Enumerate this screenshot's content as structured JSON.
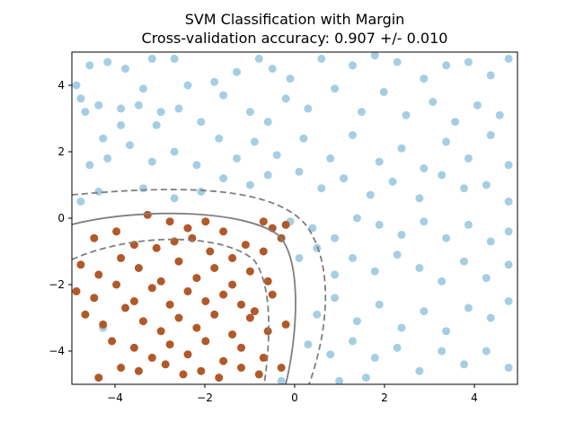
{
  "chart_data": {
    "type": "scatter",
    "title": "SVM Classification with Margin",
    "subtitle": "Cross-validation accuracy: 0.907 +/- 0.010",
    "xlim": [
      -5,
      5
    ],
    "ylim": [
      -5,
      5
    ],
    "x_ticks": [
      "−4",
      "−2",
      "0",
      "2",
      "4"
    ],
    "y_ticks": [
      "4",
      "2",
      "0",
      "−2",
      "−4"
    ],
    "colors": {
      "class_a": "#a6cee3",
      "class_b": "#b15928",
      "boundary": "#7f7f7f"
    },
    "series": [
      {
        "class": "outside",
        "color": "#a6cee3",
        "points": [
          [
            -4.6,
            4.6
          ],
          [
            -4.2,
            4.7
          ],
          [
            -3.8,
            4.5
          ],
          [
            -3.2,
            4.8
          ],
          [
            -2.7,
            4.8
          ],
          [
            -4.8,
            3.6
          ],
          [
            -4.4,
            3.4
          ],
          [
            -3.9,
            3.3
          ],
          [
            -3.4,
            3.9
          ],
          [
            -3.0,
            3.2
          ],
          [
            -2.4,
            4.0
          ],
          [
            -1.8,
            4.1
          ],
          [
            -1.3,
            4.4
          ],
          [
            -0.8,
            4.8
          ],
          [
            -0.5,
            4.5
          ],
          [
            -0.1,
            4.2
          ],
          [
            0.6,
            4.8
          ],
          [
            1.3,
            4.6
          ],
          [
            1.8,
            4.9
          ],
          [
            2.3,
            4.7
          ],
          [
            2.9,
            4.2
          ],
          [
            3.4,
            4.6
          ],
          [
            3.9,
            4.7
          ],
          [
            4.4,
            4.3
          ],
          [
            4.8,
            4.8
          ],
          [
            -4.9,
            4.0
          ],
          [
            -4.7,
            3.2
          ],
          [
            -4.3,
            2.4
          ],
          [
            -3.9,
            2.8
          ],
          [
            -3.5,
            3.4
          ],
          [
            -3.1,
            2.8
          ],
          [
            -2.6,
            3.3
          ],
          [
            -2.1,
            2.9
          ],
          [
            -1.6,
            3.7
          ],
          [
            -1.0,
            3.2
          ],
          [
            -0.6,
            2.9
          ],
          [
            -0.2,
            3.6
          ],
          [
            0.3,
            3.3
          ],
          [
            0.9,
            3.9
          ],
          [
            1.5,
            3.2
          ],
          [
            2.0,
            3.8
          ],
          [
            2.5,
            3.1
          ],
          [
            3.1,
            3.5
          ],
          [
            3.6,
            2.9
          ],
          [
            4.1,
            3.4
          ],
          [
            4.6,
            3.1
          ],
          [
            -4.6,
            1.6
          ],
          [
            -4.2,
            1.8
          ],
          [
            -3.7,
            2.2
          ],
          [
            -3.2,
            1.7
          ],
          [
            -2.7,
            2.0
          ],
          [
            -2.2,
            1.6
          ],
          [
            -1.7,
            2.4
          ],
          [
            -1.3,
            1.8
          ],
          [
            -0.9,
            2.3
          ],
          [
            -0.4,
            1.9
          ],
          [
            0.2,
            2.4
          ],
          [
            0.8,
            1.8
          ],
          [
            1.3,
            2.5
          ],
          [
            1.9,
            1.7
          ],
          [
            2.4,
            2.1
          ],
          [
            2.9,
            1.5
          ],
          [
            3.4,
            2.3
          ],
          [
            3.9,
            1.8
          ],
          [
            4.4,
            2.5
          ],
          [
            4.8,
            1.6
          ],
          [
            -4.8,
            0.5
          ],
          [
            -4.4,
            0.8
          ],
          [
            -3.4,
            0.9
          ],
          [
            -2.7,
            0.6
          ],
          [
            -2.1,
            0.8
          ],
          [
            -1.6,
            1.2
          ],
          [
            -1.0,
            1.0
          ],
          [
            -0.6,
            1.3
          ],
          [
            0.1,
            1.4
          ],
          [
            0.6,
            0.9
          ],
          [
            1.1,
            1.2
          ],
          [
            1.7,
            0.7
          ],
          [
            2.2,
            1.1
          ],
          [
            2.8,
            0.6
          ],
          [
            3.3,
            1.3
          ],
          [
            3.8,
            0.9
          ],
          [
            4.3,
            1.0
          ],
          [
            4.8,
            0.5
          ],
          [
            -0.1,
            -0.1
          ],
          [
            0.4,
            -0.3
          ],
          [
            0.9,
            -0.6
          ],
          [
            1.4,
            0.0
          ],
          [
            1.9,
            -0.2
          ],
          [
            2.4,
            -0.5
          ],
          [
            2.9,
            -0.1
          ],
          [
            3.4,
            -0.6
          ],
          [
            3.9,
            -0.2
          ],
          [
            4.4,
            -0.7
          ],
          [
            4.8,
            -0.4
          ],
          [
            0.1,
            -1.2
          ],
          [
            0.5,
            -0.9
          ],
          [
            0.9,
            -1.7
          ],
          [
            1.3,
            -1.2
          ],
          [
            1.8,
            -1.6
          ],
          [
            2.3,
            -1.1
          ],
          [
            2.8,
            -1.5
          ],
          [
            3.3,
            -1.9
          ],
          [
            3.8,
            -1.3
          ],
          [
            4.3,
            -1.8
          ],
          [
            4.8,
            -1.4
          ],
          [
            0.5,
            -2.9
          ],
          [
            0.9,
            -2.4
          ],
          [
            1.4,
            -3.1
          ],
          [
            1.9,
            -2.6
          ],
          [
            2.4,
            -3.3
          ],
          [
            2.9,
            -2.8
          ],
          [
            3.4,
            -3.4
          ],
          [
            3.9,
            -2.7
          ],
          [
            4.4,
            -3.0
          ],
          [
            4.8,
            -2.5
          ],
          [
            -4.3,
            -3.3
          ],
          [
            0.3,
            -3.8
          ],
          [
            0.8,
            -4.1
          ],
          [
            1.3,
            -3.7
          ],
          [
            1.8,
            -4.2
          ],
          [
            2.3,
            -3.9
          ],
          [
            2.8,
            -4.6
          ],
          [
            3.3,
            -4.0
          ],
          [
            3.8,
            -4.4
          ],
          [
            4.3,
            -4.0
          ],
          [
            4.8,
            -4.5
          ],
          [
            1.6,
            -4.8
          ],
          [
            1.0,
            -4.9
          ],
          [
            -0.3,
            -4.9
          ]
        ]
      },
      {
        "class": "inside",
        "color": "#b15928",
        "points": [
          [
            -3.3,
            0.1
          ],
          [
            -2.8,
            -0.1
          ],
          [
            -2.4,
            -0.3
          ],
          [
            -2.0,
            -0.1
          ],
          [
            -1.6,
            -0.4
          ],
          [
            -0.7,
            -0.1
          ],
          [
            -0.5,
            -0.3
          ],
          [
            -0.2,
            -0.2
          ],
          [
            -4.5,
            -0.6
          ],
          [
            -4.0,
            -0.4
          ],
          [
            -3.6,
            -0.8
          ],
          [
            -3.1,
            -0.9
          ],
          [
            -2.7,
            -0.7
          ],
          [
            -2.3,
            -0.6
          ],
          [
            -1.9,
            -1.0
          ],
          [
            -1.4,
            -1.2
          ],
          [
            -1.1,
            -0.8
          ],
          [
            -0.7,
            -1.0
          ],
          [
            -0.3,
            -0.6
          ],
          [
            -4.8,
            -1.4
          ],
          [
            -4.4,
            -1.7
          ],
          [
            -3.9,
            -1.2
          ],
          [
            -3.5,
            -1.5
          ],
          [
            -3.0,
            -1.9
          ],
          [
            -2.6,
            -1.3
          ],
          [
            -2.2,
            -1.8
          ],
          [
            -1.8,
            -1.5
          ],
          [
            -1.4,
            -2.0
          ],
          [
            -1.0,
            -1.6
          ],
          [
            -0.6,
            -1.9
          ],
          [
            -4.9,
            -2.2
          ],
          [
            -4.5,
            -2.4
          ],
          [
            -4.0,
            -2.0
          ],
          [
            -3.6,
            -2.5
          ],
          [
            -3.2,
            -2.1
          ],
          [
            -2.8,
            -2.6
          ],
          [
            -2.4,
            -2.2
          ],
          [
            -2.0,
            -2.5
          ],
          [
            -1.6,
            -2.3
          ],
          [
            -1.2,
            -2.6
          ],
          [
            -0.9,
            -2.8
          ],
          [
            -0.5,
            -2.3
          ],
          [
            -4.7,
            -2.9
          ],
          [
            -4.3,
            -3.2
          ],
          [
            -3.8,
            -2.7
          ],
          [
            -3.4,
            -3.1
          ],
          [
            -3.0,
            -3.4
          ],
          [
            -2.6,
            -3.0
          ],
          [
            -2.2,
            -3.3
          ],
          [
            -1.8,
            -2.9
          ],
          [
            -1.4,
            -3.5
          ],
          [
            -1.0,
            -3.0
          ],
          [
            -0.6,
            -3.4
          ],
          [
            -0.2,
            -3.2
          ],
          [
            -4.1,
            -3.7
          ],
          [
            -3.6,
            -3.9
          ],
          [
            -3.2,
            -4.2
          ],
          [
            -2.8,
            -3.8
          ],
          [
            -2.4,
            -4.1
          ],
          [
            -2.0,
            -3.7
          ],
          [
            -1.6,
            -4.3
          ],
          [
            -1.2,
            -3.9
          ],
          [
            -0.7,
            -4.2
          ],
          [
            -0.3,
            -4.5
          ],
          [
            -4.4,
            -4.8
          ],
          [
            -3.9,
            -4.5
          ],
          [
            -3.5,
            -4.6
          ],
          [
            -2.9,
            -4.4
          ],
          [
            -2.5,
            -4.7
          ],
          [
            -2.1,
            -4.6
          ],
          [
            -1.7,
            -4.8
          ],
          [
            -1.2,
            -4.5
          ],
          [
            -0.8,
            -4.7
          ]
        ]
      }
    ]
  }
}
